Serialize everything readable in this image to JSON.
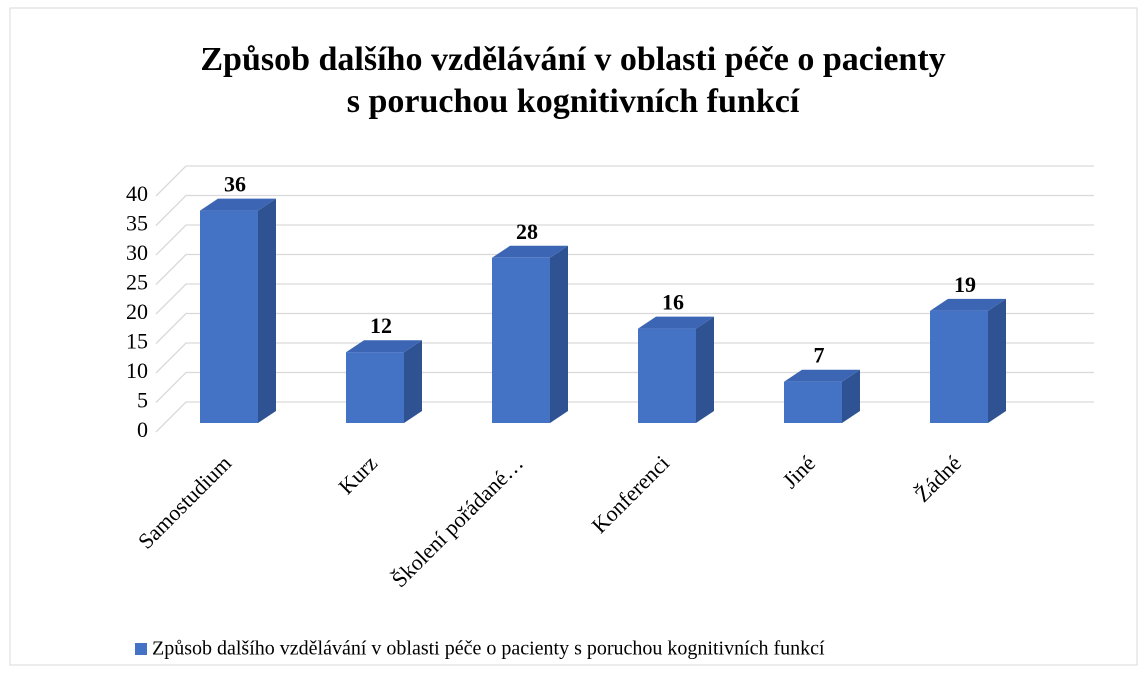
{
  "chart_data": {
    "type": "bar3d",
    "title": [
      "Způsob dalšího vzdělávání v oblasti péče o pacienty",
      "s poruchou kognitivních funkcí"
    ],
    "categories": [
      "Samostudium",
      "Kurz",
      "Školení pořádané…",
      "Konferenci",
      "Jiné",
      "Žádné"
    ],
    "series": [
      {
        "name": "Způsob dalšího vzdělávání v oblasti péče o pacienty s poruchou kognitivních funkcí",
        "color": "#4472c4",
        "values": [
          36,
          12,
          28,
          16,
          7,
          19
        ]
      }
    ],
    "ylim": [
      0,
      40
    ],
    "yticks": [
      0,
      5,
      10,
      15,
      20,
      25,
      30,
      35,
      40
    ],
    "grid": true,
    "legend": "bottom"
  }
}
